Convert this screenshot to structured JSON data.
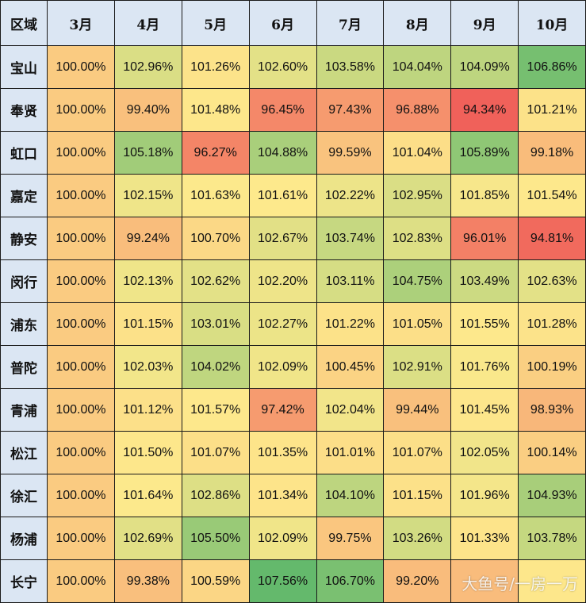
{
  "colors": {
    "header_bg": "#dbe6f3",
    "low": "#f0605a",
    "mid": "#fde98c",
    "high": "#63b96c",
    "border": "#1a1a1a"
  },
  "watermark": "大鱼号/一房一万",
  "chart_data": {
    "type": "heatmap",
    "corner_label": "区域",
    "columns": [
      "3月",
      "4月",
      "5月",
      "6月",
      "7月",
      "8月",
      "9月",
      "10月"
    ],
    "rows": [
      {
        "label": "宝山",
        "values": [
          "100.00%",
          "102.96%",
          "101.26%",
          "102.60%",
          "103.58%",
          "104.04%",
          "104.09%",
          "106.86%"
        ]
      },
      {
        "label": "奉贤",
        "values": [
          "100.00%",
          "99.40%",
          "101.48%",
          "96.45%",
          "97.43%",
          "96.88%",
          "94.34%",
          "101.21%"
        ]
      },
      {
        "label": "虹口",
        "values": [
          "100.00%",
          "105.18%",
          "96.27%",
          "104.88%",
          "99.59%",
          "101.04%",
          "105.89%",
          "99.18%"
        ]
      },
      {
        "label": "嘉定",
        "values": [
          "100.00%",
          "102.15%",
          "101.63%",
          "101.61%",
          "102.22%",
          "102.95%",
          "101.85%",
          "101.54%"
        ]
      },
      {
        "label": "静安",
        "values": [
          "100.00%",
          "99.24%",
          "100.70%",
          "102.67%",
          "103.74%",
          "102.83%",
          "96.01%",
          "94.81%"
        ]
      },
      {
        "label": "闵行",
        "values": [
          "100.00%",
          "102.13%",
          "102.62%",
          "102.20%",
          "103.11%",
          "104.75%",
          "103.49%",
          "102.63%"
        ]
      },
      {
        "label": "浦东",
        "values": [
          "100.00%",
          "101.15%",
          "103.01%",
          "102.27%",
          "101.22%",
          "101.05%",
          "101.55%",
          "101.28%"
        ]
      },
      {
        "label": "普陀",
        "values": [
          "100.00%",
          "102.03%",
          "104.02%",
          "102.09%",
          "100.45%",
          "102.91%",
          "101.76%",
          "100.19%"
        ]
      },
      {
        "label": "青浦",
        "values": [
          "100.00%",
          "101.12%",
          "101.57%",
          "97.42%",
          "102.04%",
          "99.44%",
          "101.45%",
          "98.93%"
        ]
      },
      {
        "label": "松江",
        "values": [
          "100.00%",
          "101.50%",
          "101.07%",
          "101.35%",
          "101.01%",
          "101.07%",
          "102.05%",
          "100.14%"
        ]
      },
      {
        "label": "徐汇",
        "values": [
          "100.00%",
          "101.64%",
          "102.86%",
          "101.34%",
          "104.10%",
          "101.15%",
          "101.96%",
          "104.93%"
        ]
      },
      {
        "label": "杨浦",
        "values": [
          "100.00%",
          "102.69%",
          "105.50%",
          "102.09%",
          "99.75%",
          "103.26%",
          "101.33%",
          "103.78%"
        ]
      },
      {
        "label": "长宁",
        "values": [
          "100.00%",
          "99.38%",
          "100.59%",
          "107.56%",
          "106.70%",
          "99.20%",
          "",
          ""
        ]
      }
    ]
  }
}
